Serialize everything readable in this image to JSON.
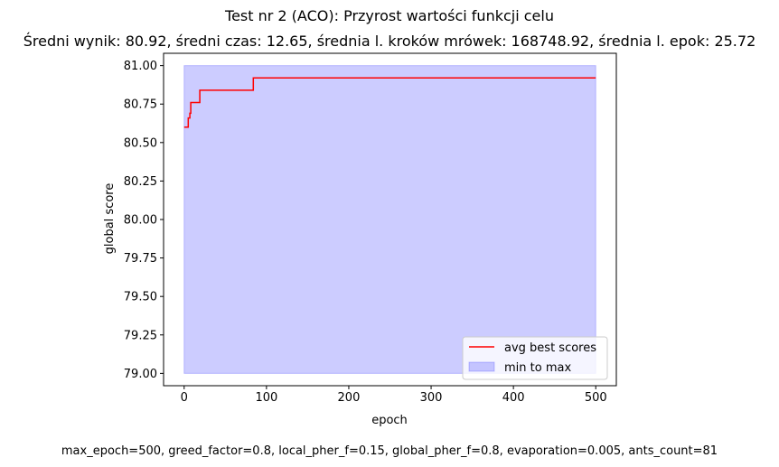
{
  "chart_data": {
    "type": "line",
    "title": "Test nr 2 (ACO): Przyrost wartości funkcji celu",
    "subtitle": "Średni wynik: 80.92, średni czas: 12.65, średnia l. kroków mrówek: 168748.92, średnia l. epok: 25.72",
    "xlabel": "epoch",
    "ylabel": "global score",
    "footnote": "max_epoch=500, greed_factor=0.8, local_pher_f=0.15, global_pher_f=0.8, evaporation=0.005, ants_count=81",
    "xlim": [
      -25,
      525
    ],
    "ylim": [
      78.92,
      81.08
    ],
    "xticks": [
      0,
      100,
      200,
      300,
      400,
      500
    ],
    "yticks": [
      79.0,
      79.25,
      79.5,
      79.75,
      80.0,
      80.25,
      80.5,
      80.75,
      81.0
    ],
    "xtick_labels": [
      "0",
      "100",
      "200",
      "300",
      "400",
      "500"
    ],
    "ytick_labels": [
      "79.00",
      "79.25",
      "79.50",
      "79.75",
      "80.00",
      "80.25",
      "80.50",
      "80.75",
      "81.00"
    ],
    "grid": false,
    "legend_position": "lower-right",
    "series": [
      {
        "name": "avg best scores",
        "kind": "step-line",
        "color": "#ff0000",
        "points": [
          [
            0,
            80.6
          ],
          [
            5,
            80.6
          ],
          [
            5,
            80.66
          ],
          [
            7,
            80.66
          ],
          [
            7,
            80.69
          ],
          [
            8,
            80.69
          ],
          [
            8,
            80.76
          ],
          [
            19,
            80.76
          ],
          [
            19,
            80.84
          ],
          [
            84,
            80.84
          ],
          [
            84,
            80.92
          ],
          [
            500,
            80.92
          ]
        ]
      },
      {
        "name": "min to max",
        "kind": "band",
        "color": "#0000ff",
        "alpha": 0.2,
        "x": [
          0,
          500
        ],
        "lower": [
          79.0,
          79.0
        ],
        "upper": [
          81.0,
          81.0
        ]
      }
    ]
  }
}
